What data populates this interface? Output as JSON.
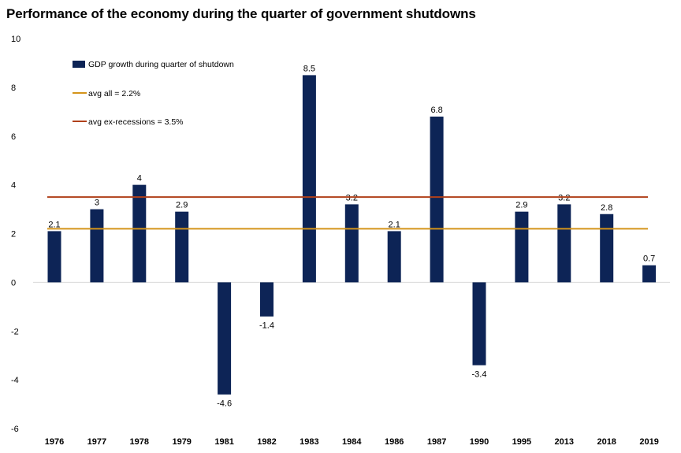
{
  "chart_data": {
    "type": "bar",
    "title": "Performance of the economy during the quarter of government shutdowns",
    "categories": [
      "1976",
      "1977",
      "1978",
      "1979",
      "1981",
      "1982",
      "1983",
      "1984",
      "1986",
      "1987",
      "1990",
      "1995",
      "2013",
      "2018",
      "2019"
    ],
    "series": [
      {
        "name": "GDP growth during quarter of shutdown",
        "values": [
          2.1,
          3,
          4,
          2.9,
          -4.6,
          -1.4,
          8.5,
          3.2,
          2.1,
          6.8,
          -3.4,
          2.9,
          3.2,
          2.8,
          0.7
        ],
        "color": "#0d2456"
      }
    ],
    "data_labels": [
      "2.1",
      "3",
      "4",
      "2.9",
      "-4.6",
      "-1.4",
      "8.5",
      "3.2",
      "2.1",
      "6.8",
      "-3.4",
      "2.9",
      "3.2",
      "2.8",
      "0.7"
    ],
    "reference_lines": [
      {
        "name": "avg all = 2.2%",
        "value": 2.2,
        "color": "#d4941a"
      },
      {
        "name": "avg ex-recessions = 3.5%",
        "value": 3.5,
        "color": "#b0401a"
      }
    ],
    "ylim": [
      -6,
      10
    ],
    "yticks": [
      "10",
      "8",
      "6",
      "4",
      "2",
      "0",
      "-2",
      "-4",
      "-6"
    ],
    "xlabel": "",
    "ylabel": "",
    "grid": false,
    "legend_position": "top-left"
  }
}
